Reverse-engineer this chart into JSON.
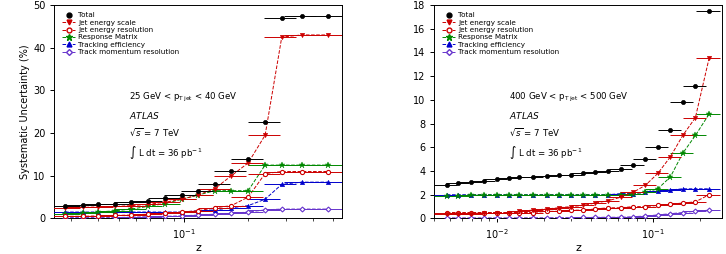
{
  "left": {
    "ylim": [
      0,
      50
    ],
    "yticks": [
      0,
      10,
      20,
      30,
      40,
      50
    ],
    "xlim": [
      0.025,
      0.55
    ],
    "z": [
      0.028,
      0.034,
      0.04,
      0.048,
      0.057,
      0.068,
      0.082,
      0.098,
      0.117,
      0.14,
      0.167,
      0.2,
      0.24,
      0.287,
      0.355,
      0.47
    ],
    "total": [
      3.0,
      3.2,
      3.3,
      3.5,
      3.8,
      4.2,
      4.8,
      5.5,
      6.5,
      8.0,
      11.2,
      14.0,
      22.5,
      47.0,
      47.5,
      47.5
    ],
    "jes": [
      2.5,
      2.6,
      2.7,
      2.8,
      3.0,
      3.3,
      3.8,
      4.5,
      5.5,
      7.0,
      10.0,
      13.0,
      19.5,
      42.5,
      43.0,
      43.0
    ],
    "jer": [
      0.5,
      0.5,
      0.6,
      0.7,
      0.8,
      1.0,
      1.2,
      1.5,
      1.8,
      2.5,
      3.0,
      5.0,
      10.5,
      11.0,
      11.0,
      11.0
    ],
    "matrix": [
      1.0,
      1.2,
      1.5,
      1.8,
      2.2,
      2.8,
      3.5,
      4.5,
      5.5,
      6.5,
      6.5,
      6.5,
      12.5,
      12.5,
      12.5,
      12.5
    ],
    "tracking": [
      1.5,
      1.5,
      1.5,
      1.5,
      1.5,
      1.5,
      1.5,
      1.5,
      1.8,
      2.0,
      2.5,
      3.0,
      4.5,
      8.0,
      8.5,
      8.5
    ],
    "momentum": [
      0.2,
      0.2,
      0.2,
      0.2,
      0.3,
      0.4,
      0.5,
      0.6,
      0.8,
      1.0,
      1.2,
      1.5,
      2.0,
      2.2,
      2.2,
      2.2
    ]
  },
  "right": {
    "ylim": [
      0,
      18
    ],
    "yticks": [
      0,
      2,
      4,
      6,
      8,
      10,
      12,
      14,
      16,
      18
    ],
    "xlim": [
      0.004,
      0.28
    ],
    "z": [
      0.0048,
      0.0057,
      0.0069,
      0.0083,
      0.01,
      0.012,
      0.014,
      0.017,
      0.021,
      0.025,
      0.03,
      0.036,
      0.043,
      0.052,
      0.063,
      0.075,
      0.09,
      0.108,
      0.13,
      0.156,
      0.188,
      0.23
    ],
    "total": [
      2.8,
      3.0,
      3.1,
      3.2,
      3.3,
      3.4,
      3.5,
      3.5,
      3.6,
      3.7,
      3.7,
      3.8,
      3.9,
      4.0,
      4.2,
      4.5,
      5.0,
      6.0,
      7.5,
      9.8,
      11.2,
      17.5
    ],
    "jes": [
      0.4,
      0.4,
      0.4,
      0.5,
      0.5,
      0.5,
      0.6,
      0.7,
      0.8,
      0.9,
      1.0,
      1.1,
      1.3,
      1.5,
      1.8,
      2.2,
      2.8,
      3.8,
      5.2,
      7.0,
      8.5,
      13.5
    ],
    "jer": [
      0.5,
      0.5,
      0.5,
      0.5,
      0.5,
      0.5,
      0.5,
      0.5,
      0.6,
      0.6,
      0.7,
      0.7,
      0.8,
      0.9,
      0.9,
      1.0,
      1.0,
      1.1,
      1.2,
      1.3,
      1.4,
      2.0
    ],
    "matrix": [
      1.9,
      1.9,
      2.0,
      2.0,
      2.0,
      2.0,
      2.0,
      2.0,
      2.0,
      2.0,
      2.0,
      2.0,
      2.0,
      2.0,
      2.0,
      2.1,
      2.2,
      2.5,
      3.5,
      5.5,
      7.0,
      8.8
    ],
    "tracking": [
      2.0,
      2.0,
      2.0,
      2.0,
      2.0,
      2.0,
      2.0,
      2.0,
      2.0,
      2.0,
      2.0,
      2.0,
      2.0,
      2.0,
      2.1,
      2.1,
      2.2,
      2.3,
      2.4,
      2.5,
      2.5,
      2.5
    ],
    "momentum": [
      0.05,
      0.05,
      0.05,
      0.05,
      0.05,
      0.05,
      0.05,
      0.06,
      0.06,
      0.07,
      0.07,
      0.08,
      0.09,
      0.1,
      0.1,
      0.15,
      0.2,
      0.3,
      0.4,
      0.5,
      0.6,
      0.7
    ]
  },
  "colors": {
    "total": "#000000",
    "jes": "#cc0000",
    "jer": "#cc0000",
    "matrix": "#008800",
    "tracking": "#0000cc",
    "momentum": "#6633cc"
  },
  "ylabel": "Systematic Uncertainty (%)",
  "xlabel": "z",
  "left_label": "25 GeV < p_{T jet} < 40 GeV",
  "right_label": "400 GeV < p_{T jet} < 500 GeV"
}
